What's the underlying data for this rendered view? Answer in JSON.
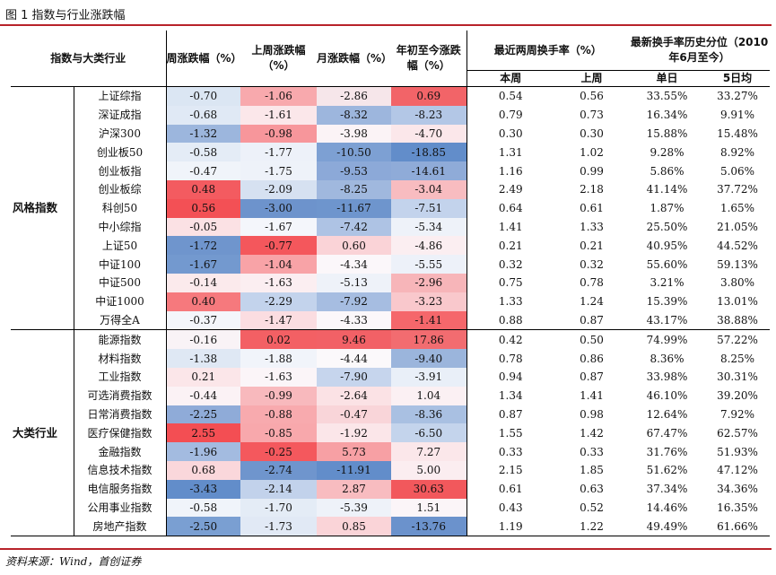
{
  "title": "图 1 指数与行业涨跌幅",
  "source": "资料来源：Wind，首创证券",
  "headers": {
    "col0": "指数与大类行业",
    "col1": "周涨跌幅（%）",
    "col2": "上周涨跌幅（%）",
    "col3": "月涨跌幅（%）",
    "col4": "年初至今涨跌幅（%）",
    "turnover": "最近两周换手率（%）",
    "history": "最新换手率历史分位（2010年6月至今）",
    "this_week": "本周",
    "last_week": "上周",
    "single_day": "单日",
    "five_day": "5日均"
  },
  "colors": {
    "accent": "#b8232a"
  },
  "groups": [
    {
      "label": "风格指数",
      "rows": [
        {
          "name": "上证综指",
          "v": [
            "-0.70",
            "-1.06",
            "-2.86",
            "0.69"
          ],
          "c": [
            "#dbe6f3",
            "#f8a9ad",
            "#f6e6ea",
            "#f26468"
          ],
          "t": [
            "0.54",
            "0.56",
            "33.55%",
            "33.27%"
          ]
        },
        {
          "name": "深证成指",
          "v": [
            "-0.68",
            "-1.61",
            "-8.32",
            "-8.23"
          ],
          "c": [
            "#e0e9f5",
            "#fbe7ea",
            "#9db6dd",
            "#b3c7e6"
          ],
          "t": [
            "0.79",
            "0.73",
            "16.34%",
            "9.91%"
          ]
        },
        {
          "name": "沪深300",
          "v": [
            "-1.32",
            "-0.98",
            "-3.98",
            "-4.70"
          ],
          "c": [
            "#9cb6dd",
            "#f7969b",
            "#fbf3f6",
            "#fbe7ea"
          ],
          "t": [
            "0.30",
            "0.30",
            "15.88%",
            "15.48%"
          ]
        },
        {
          "name": "创业板50",
          "v": [
            "-0.58",
            "-1.77",
            "-10.50",
            "-18.85"
          ],
          "c": [
            "#e4ecf6",
            "#edf1f9",
            "#7da0d3",
            "#628dca"
          ],
          "t": [
            "1.31",
            "1.02",
            "9.28%",
            "8.92%"
          ]
        },
        {
          "name": "创业板指",
          "v": [
            "-0.47",
            "-1.75",
            "-9.53",
            "-14.61"
          ],
          "c": [
            "#f0f4fa",
            "#eef2f9",
            "#8ca9d8",
            "#8fabd8"
          ],
          "t": [
            "1.16",
            "0.99",
            "5.86%",
            "5.06%"
          ]
        },
        {
          "name": "创业板综",
          "v": [
            "0.48",
            "-2.09",
            "-8.25",
            "-3.04"
          ],
          "c": [
            "#f35b60",
            "#d6e1f1",
            "#a0b8de",
            "#f8bcc0"
          ],
          "t": [
            "2.49",
            "2.18",
            "41.14%",
            "37.72%"
          ]
        },
        {
          "name": "科创50",
          "v": [
            "0.56",
            "-3.00",
            "-11.67",
            "-7.51"
          ],
          "c": [
            "#f35055",
            "#6d93cc",
            "#6e95cd",
            "#c3d3ec"
          ],
          "t": [
            "0.64",
            "0.61",
            "1.87%",
            "1.65%"
          ]
        },
        {
          "name": "中小综指",
          "v": [
            "-0.05",
            "-1.67",
            "-7.42",
            "-5.34"
          ],
          "c": [
            "#fbe1e4",
            "#f4f6fb",
            "#aec3e4",
            "#eef2f9"
          ],
          "t": [
            "1.41",
            "1.33",
            "25.50%",
            "21.05%"
          ]
        },
        {
          "name": "上证50",
          "v": [
            "-1.72",
            "-0.77",
            "0.60",
            "-4.86"
          ],
          "c": [
            "#6f95cd",
            "#f4575c",
            "#fad3d7",
            "#fbeef1"
          ],
          "t": [
            "0.21",
            "0.21",
            "40.95%",
            "44.52%"
          ]
        },
        {
          "name": "中证100",
          "v": [
            "-1.67",
            "-1.04",
            "-4.34",
            "-5.55"
          ],
          "c": [
            "#7399cf",
            "#f8a3a7",
            "#fbf7fa",
            "#edf1f9"
          ],
          "t": [
            "0.32",
            "0.32",
            "55.60%",
            "59.13%"
          ]
        },
        {
          "name": "中证500",
          "v": [
            "-0.14",
            "-1.63",
            "-5.13",
            "-2.96"
          ],
          "c": [
            "#fbeaec",
            "#fbeef1",
            "#eef2f9",
            "#f7b5b9"
          ],
          "t": [
            "0.75",
            "0.78",
            "3.21%",
            "3.80%"
          ]
        },
        {
          "name": "中证1000",
          "v": [
            "0.40",
            "-2.29",
            "-7.92",
            "-3.23"
          ],
          "c": [
            "#f6797d",
            "#c3d3ec",
            "#a6bde1",
            "#f9c8cc"
          ],
          "t": [
            "1.33",
            "1.24",
            "15.39%",
            "13.01%"
          ]
        },
        {
          "name": "万得全A",
          "v": [
            "-0.37",
            "-1.47",
            "-4.33",
            "-1.41"
          ],
          "c": [
            "#f4f6fb",
            "#fbdde1",
            "#fbf7fa",
            "#f5676b"
          ],
          "t": [
            "0.88",
            "0.87",
            "43.17%",
            "38.88%"
          ]
        }
      ]
    },
    {
      "label": "大类行业",
      "rows": [
        {
          "name": "能源指数",
          "v": [
            "-0.16",
            "0.02",
            "9.46",
            "17.86"
          ],
          "c": [
            "#f9f3f6",
            "#f36064",
            "#f26166",
            "#f26c70"
          ],
          "t": [
            "0.42",
            "0.50",
            "74.99%",
            "57.22%"
          ]
        },
        {
          "name": "材料指数",
          "v": [
            "-1.38",
            "-1.88",
            "-4.44",
            "-9.40"
          ],
          "c": [
            "#dfe8f4",
            "#f1f4fa",
            "#fbf9fb",
            "#9bb5dc"
          ],
          "t": [
            "0.78",
            "0.86",
            "8.36%",
            "8.25%"
          ]
        },
        {
          "name": "工业指数",
          "v": [
            "0.21",
            "-1.63",
            "-7.90",
            "-3.91"
          ],
          "c": [
            "#fbe6e9",
            "#fbf5f8",
            "#c6d5ed",
            "#e9eff8"
          ],
          "t": [
            "0.94",
            "0.87",
            "33.98%",
            "30.31%"
          ]
        },
        {
          "name": "可选消费指数",
          "v": [
            "-0.44",
            "-0.99",
            "-2.64",
            "1.04"
          ],
          "c": [
            "#fbf2f5",
            "#f8b9bd",
            "#fbe2e5",
            "#fbf0f3"
          ],
          "t": [
            "1.34",
            "1.41",
            "46.10%",
            "39.20%"
          ]
        },
        {
          "name": "日常消费指数",
          "v": [
            "-2.25",
            "-0.88",
            "-0.47",
            "-8.36"
          ],
          "c": [
            "#8fabd8",
            "#f8aaae",
            "#f9d5d9",
            "#a9c0e2"
          ],
          "t": [
            "0.87",
            "0.98",
            "12.64%",
            "7.92%"
          ]
        },
        {
          "name": "医疗保健指数",
          "v": [
            "2.55",
            "-0.85",
            "-1.92",
            "-6.50"
          ],
          "c": [
            "#f34e53",
            "#f8a8ac",
            "#fbe6e9",
            "#c4d4ec"
          ],
          "t": [
            "1.55",
            "1.42",
            "67.47%",
            "62.57%"
          ]
        },
        {
          "name": "金融指数",
          "v": [
            "-1.96",
            "-0.25",
            "5.73",
            "7.27"
          ],
          "c": [
            "#a3bbe0",
            "#f4585d",
            "#f7a0a4",
            "#fbe7ea"
          ],
          "t": [
            "0.33",
            "0.33",
            "31.76%",
            "51.93%"
          ]
        },
        {
          "name": "信息技术指数",
          "v": [
            "0.68",
            "-2.74",
            "-11.91",
            "5.00"
          ],
          "c": [
            "#fad7db",
            "#6f95cd",
            "#628dca",
            "#fbedf0"
          ],
          "t": [
            "2.15",
            "1.85",
            "51.62%",
            "47.12%"
          ]
        },
        {
          "name": "电信服务指数",
          "v": [
            "-3.43",
            "-2.14",
            "2.87",
            "30.63"
          ],
          "c": [
            "#628dca",
            "#c2d2eb",
            "#f8bcc0",
            "#f2585c"
          ],
          "t": [
            "0.61",
            "0.63",
            "37.34%",
            "34.36%"
          ]
        },
        {
          "name": "公用事业指数",
          "v": [
            "-0.58",
            "-1.70",
            "-5.39",
            "1.51"
          ],
          "c": [
            "#f0f4fa",
            "#e4ecf6",
            "#eef2f9",
            "#fbf5f8"
          ],
          "t": [
            "0.43",
            "0.52",
            "14.46%",
            "16.35%"
          ]
        },
        {
          "name": "房地产指数",
          "v": [
            "-2.50",
            "-1.73",
            "0.85",
            "-13.76"
          ],
          "c": [
            "#7a9fd2",
            "#e1e9f5",
            "#fad4d8",
            "#6b92cc"
          ],
          "t": [
            "1.19",
            "1.22",
            "49.49%",
            "61.66%"
          ]
        }
      ]
    }
  ]
}
